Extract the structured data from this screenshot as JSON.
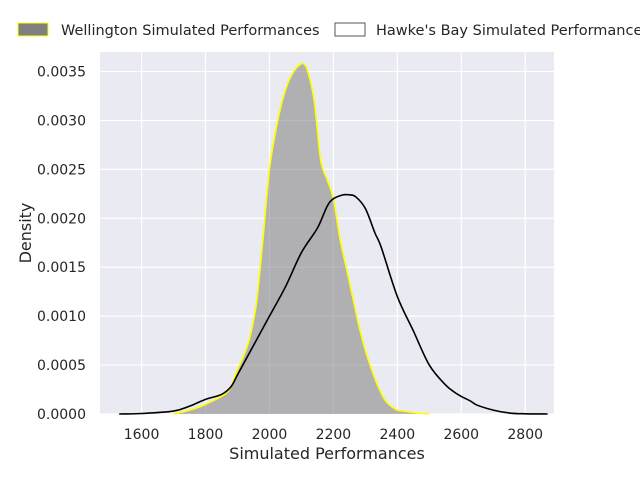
{
  "chart_data": {
    "type": "area",
    "xlabel": "Simulated Performances",
    "ylabel": "Density",
    "xlim": [
      1470,
      2890
    ],
    "ylim": [
      0,
      0.0037
    ],
    "xticks": [
      1600,
      1800,
      2000,
      2200,
      2400,
      2600,
      2800
    ],
    "yticks": [
      0,
      0.0005,
      0.001,
      0.0015,
      0.002,
      0.0025,
      0.003,
      0.0035
    ],
    "ytick_labels": [
      "0.0000",
      "0.0005",
      "0.0010",
      "0.0015",
      "0.0020",
      "0.0025",
      "0.0030",
      "0.0035"
    ],
    "grid": true,
    "legend": "top",
    "series": [
      {
        "name": "Wellington Simulated Performances",
        "style": "filled",
        "fill_color": "#808080",
        "edge_color": "#ffff00",
        "x": [
          1700,
          1740,
          1780,
          1820,
          1860,
          1880,
          1900,
          1920,
          1940,
          1960,
          1980,
          2000,
          2020,
          2040,
          2060,
          2080,
          2100,
          2110,
          2120,
          2140,
          2160,
          2180,
          2200,
          2220,
          2240,
          2260,
          2280,
          2300,
          2320,
          2340,
          2360,
          2380,
          2400,
          2420,
          2440,
          2460,
          2480,
          2500
        ],
        "y": [
          0.0,
          3e-05,
          7e-05,
          0.00013,
          0.0002,
          0.00028,
          0.00045,
          0.0006,
          0.0008,
          0.00115,
          0.0018,
          0.0025,
          0.0029,
          0.0032,
          0.0034,
          0.00352,
          0.00358,
          0.00357,
          0.0035,
          0.0032,
          0.0026,
          0.0024,
          0.0022,
          0.0018,
          0.0015,
          0.0012,
          0.0009,
          0.00065,
          0.00045,
          0.00028,
          0.00015,
          8e-05,
          4e-05,
          3e-05,
          2e-05,
          1e-05,
          5e-06,
          0.0
        ]
      },
      {
        "name": "Hawke's Bay Simulated Performances",
        "style": "line",
        "fill_color": "#ffffff",
        "edge_color": "#000000",
        "x": [
          1530,
          1600,
          1700,
          1750,
          1800,
          1850,
          1880,
          1900,
          1950,
          2000,
          2050,
          2100,
          2150,
          2180,
          2200,
          2230,
          2250,
          2270,
          2300,
          2330,
          2350,
          2400,
          2450,
          2500,
          2550,
          2580,
          2600,
          2630,
          2650,
          2700,
          2750,
          2800,
          2870
        ],
        "y": [
          0.0,
          5e-06,
          3e-05,
          8e-05,
          0.00015,
          0.0002,
          0.00028,
          0.0004,
          0.0007,
          0.001,
          0.0013,
          0.00165,
          0.0019,
          0.00212,
          0.0022,
          0.00224,
          0.00224,
          0.00222,
          0.0021,
          0.00185,
          0.0017,
          0.0012,
          0.00085,
          0.0005,
          0.0003,
          0.00022,
          0.00018,
          0.00013,
          9e-05,
          4e-05,
          1e-05,
          2e-06,
          0.0
        ]
      }
    ]
  }
}
